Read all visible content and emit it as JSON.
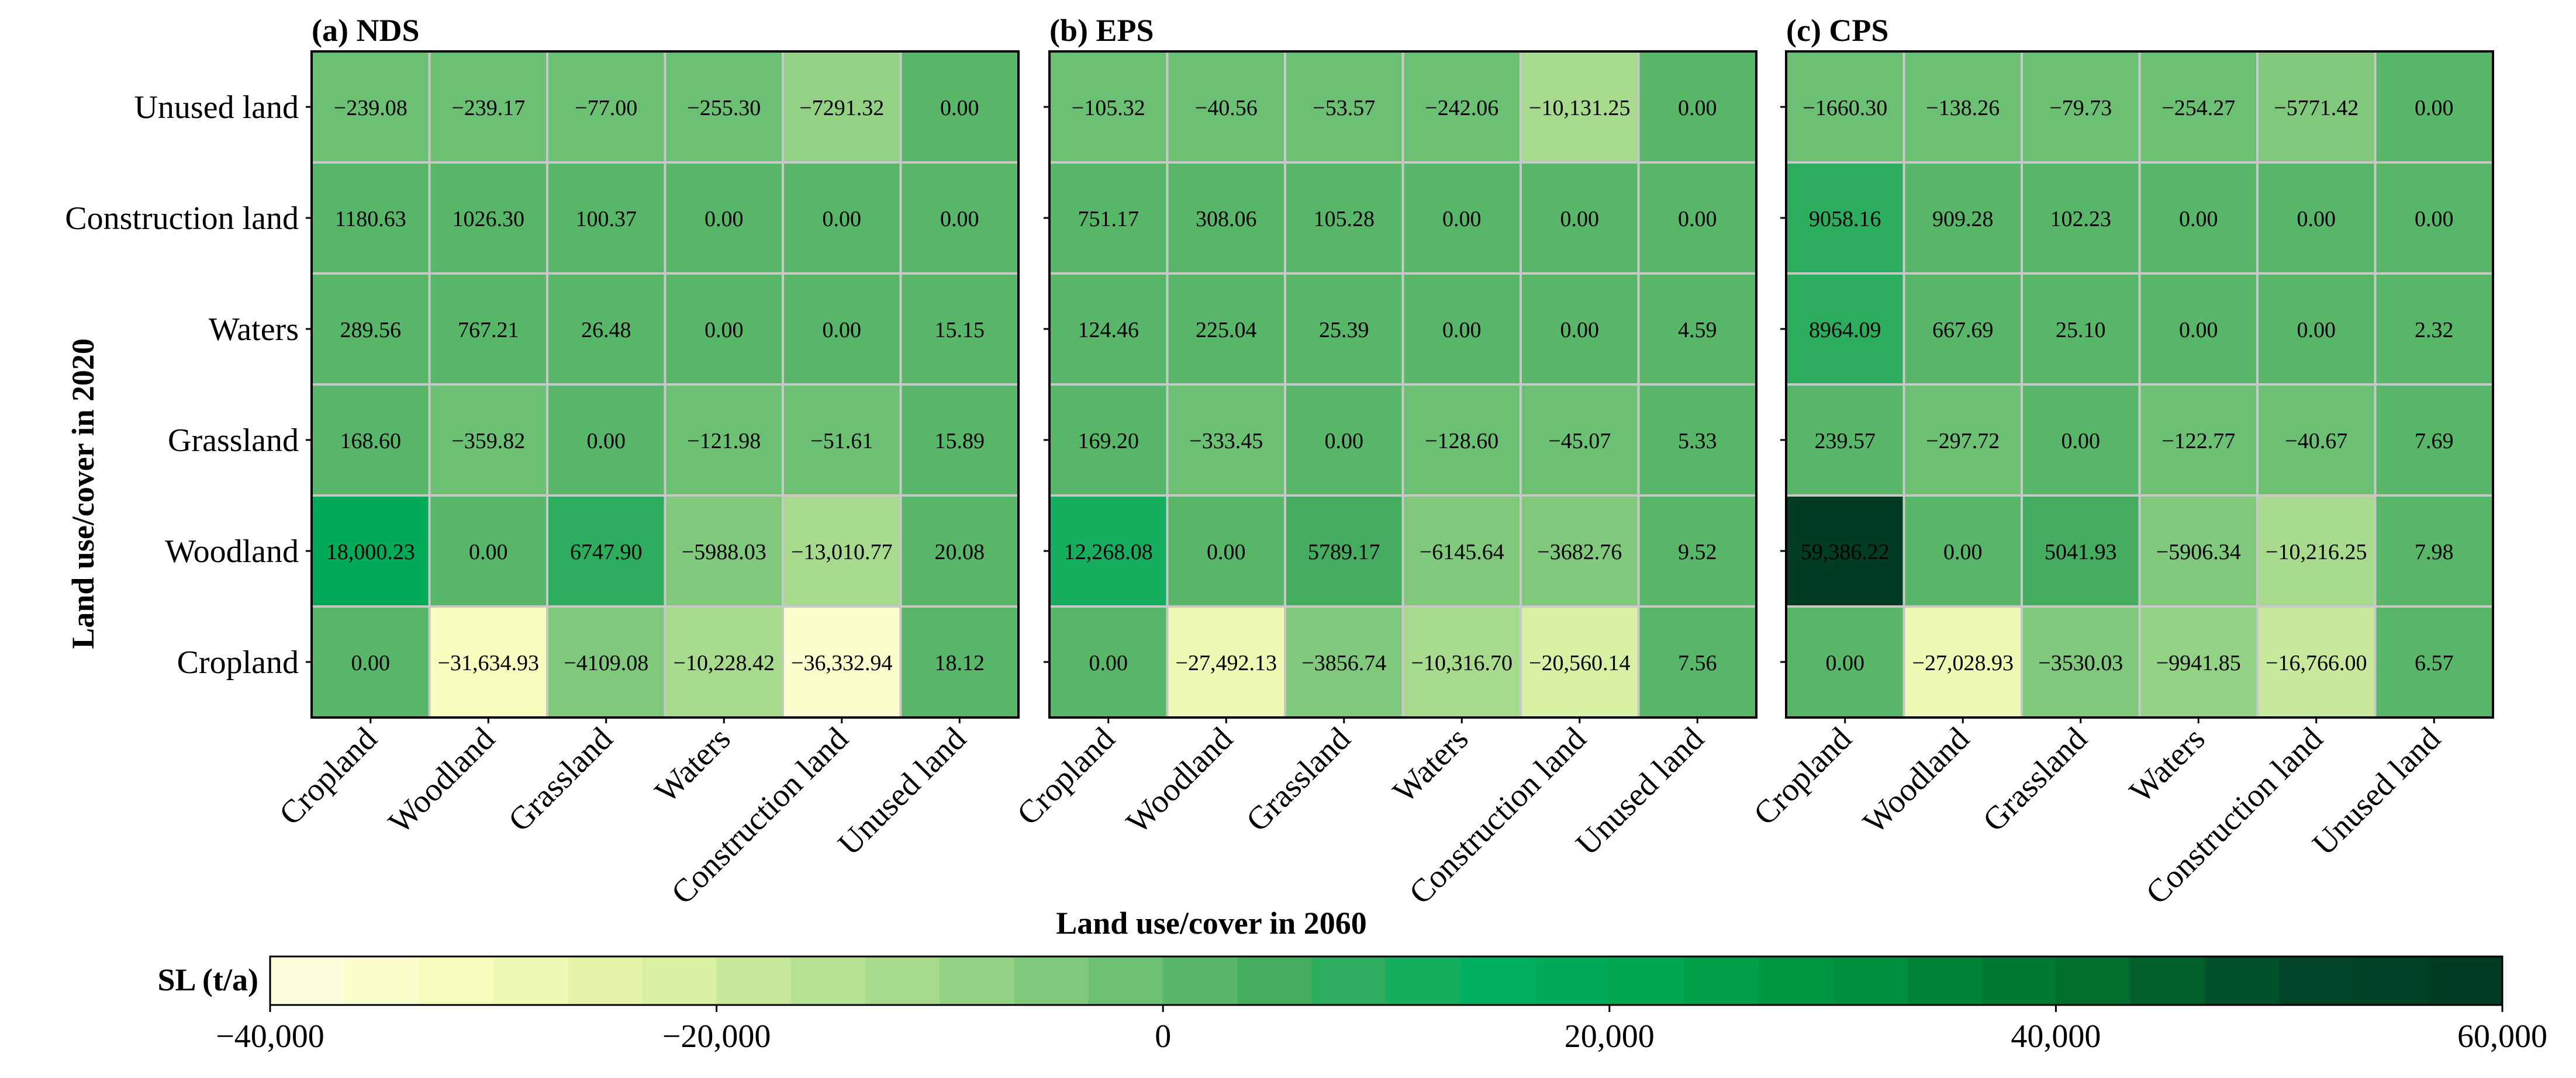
{
  "chart_data": {
    "type": "heatmap",
    "xlabel": "Land use/cover in 2060",
    "ylabel": "Land use/cover in 2020",
    "x_categories": [
      "Cropland",
      "Woodland",
      "Grassland",
      "Waters",
      "Construction land",
      "Unused land"
    ],
    "y_categories": [
      "Unused land",
      "Construction land",
      "Waters",
      "Grassland",
      "Woodland",
      "Cropland"
    ],
    "colorbar": {
      "label": "SL (t/a)",
      "min": -40000,
      "max": 60000,
      "step": 3333.33,
      "ticks": [
        -40000,
        -20000,
        0,
        20000,
        40000,
        60000
      ],
      "tick_labels": [
        "−40,000",
        "−20,000",
        "0",
        "20,000",
        "40,000",
        "60,000"
      ],
      "colormap": [
        "#ffffe5",
        "#f7fcb9",
        "#d9f0a3",
        "#addd8e",
        "#78c679",
        "#41ab5d",
        "#00b060",
        "#00a24a",
        "#008d3c",
        "#006d2c",
        "#004529",
        "#003a20"
      ]
    },
    "panels": [
      {
        "title": "(a) NDS",
        "values": [
          [
            -239.08,
            -239.17,
            -77.0,
            -255.3,
            -7291.32,
            0.0
          ],
          [
            1180.63,
            1026.3,
            100.37,
            0.0,
            0.0,
            0.0
          ],
          [
            289.56,
            767.21,
            26.48,
            0.0,
            0.0,
            15.15
          ],
          [
            168.6,
            -359.82,
            0.0,
            -121.98,
            -51.61,
            15.89
          ],
          [
            18000.23,
            0.0,
            6747.9,
            -5988.03,
            -13010.77,
            20.08
          ],
          [
            0.0,
            -31634.93,
            -4109.08,
            -10228.42,
            -36332.94,
            18.12
          ]
        ],
        "labels": [
          [
            "−239.08",
            "−239.17",
            "−77.00",
            "−255.30",
            "−7291.32",
            "0.00"
          ],
          [
            "1180.63",
            "1026.30",
            "100.37",
            "0.00",
            "0.00",
            "0.00"
          ],
          [
            "289.56",
            "767.21",
            "26.48",
            "0.00",
            "0.00",
            "15.15"
          ],
          [
            "168.60",
            "−359.82",
            "0.00",
            "−121.98",
            "−51.61",
            "15.89"
          ],
          [
            "18,000.23",
            "0.00",
            "6747.90",
            "−5988.03",
            "−13,010.77",
            "20.08"
          ],
          [
            "0.00",
            "−31,634.93",
            "−4109.08",
            "−10,228.42",
            "−36,332.94",
            "18.12"
          ]
        ]
      },
      {
        "title": "(b) EPS",
        "values": [
          [
            -105.32,
            -40.56,
            -53.57,
            -242.06,
            -10131.25,
            0.0
          ],
          [
            751.17,
            308.06,
            105.28,
            0.0,
            0.0,
            0.0
          ],
          [
            124.46,
            225.04,
            25.39,
            0.0,
            0.0,
            4.59
          ],
          [
            169.2,
            -333.45,
            0.0,
            -128.6,
            -45.07,
            5.33
          ],
          [
            12268.08,
            0.0,
            5789.17,
            -6145.64,
            -3682.76,
            9.52
          ],
          [
            0.0,
            -27492.13,
            -3856.74,
            -10316.7,
            -20560.14,
            7.56
          ]
        ],
        "labels": [
          [
            "−105.32",
            "−40.56",
            "−53.57",
            "−242.06",
            "−10,131.25",
            "0.00"
          ],
          [
            "751.17",
            "308.06",
            "105.28",
            "0.00",
            "0.00",
            "0.00"
          ],
          [
            "124.46",
            "225.04",
            "25.39",
            "0.00",
            "0.00",
            "4.59"
          ],
          [
            "169.20",
            "−333.45",
            "0.00",
            "−128.60",
            "−45.07",
            "5.33"
          ],
          [
            "12,268.08",
            "0.00",
            "5789.17",
            "−6145.64",
            "−3682.76",
            "9.52"
          ],
          [
            "0.00",
            "−27,492.13",
            "−3856.74",
            "−10,316.70",
            "−20,560.14",
            "7.56"
          ]
        ]
      },
      {
        "title": "(c) CPS",
        "values": [
          [
            -1660.3,
            -138.26,
            -79.73,
            -254.27,
            -5771.42,
            0.0
          ],
          [
            9058.16,
            909.28,
            102.23,
            0.0,
            0.0,
            0.0
          ],
          [
            8964.09,
            667.69,
            25.1,
            0.0,
            0.0,
            2.32
          ],
          [
            239.57,
            -297.72,
            0.0,
            -122.77,
            -40.67,
            7.69
          ],
          [
            59386.22,
            0.0,
            5041.93,
            -5906.34,
            -10216.25,
            7.98
          ],
          [
            0.0,
            -27028.93,
            -3530.03,
            -9941.85,
            -16766.0,
            6.57
          ]
        ],
        "labels": [
          [
            "−1660.30",
            "−138.26",
            "−79.73",
            "−254.27",
            "−5771.42",
            "0.00"
          ],
          [
            "9058.16",
            "909.28",
            "102.23",
            "0.00",
            "0.00",
            "0.00"
          ],
          [
            "8964.09",
            "667.69",
            "25.10",
            "0.00",
            "0.00",
            "2.32"
          ],
          [
            "239.57",
            "−297.72",
            "0.00",
            "−122.77",
            "−40.67",
            "7.69"
          ],
          [
            "59,386.22",
            "0.00",
            "5041.93",
            "−5906.34",
            "−10,216.25",
            "7.98"
          ],
          [
            "0.00",
            "−27,028.93",
            "−3530.03",
            "−9941.85",
            "−16,766.00",
            "6.57"
          ]
        ]
      }
    ]
  }
}
